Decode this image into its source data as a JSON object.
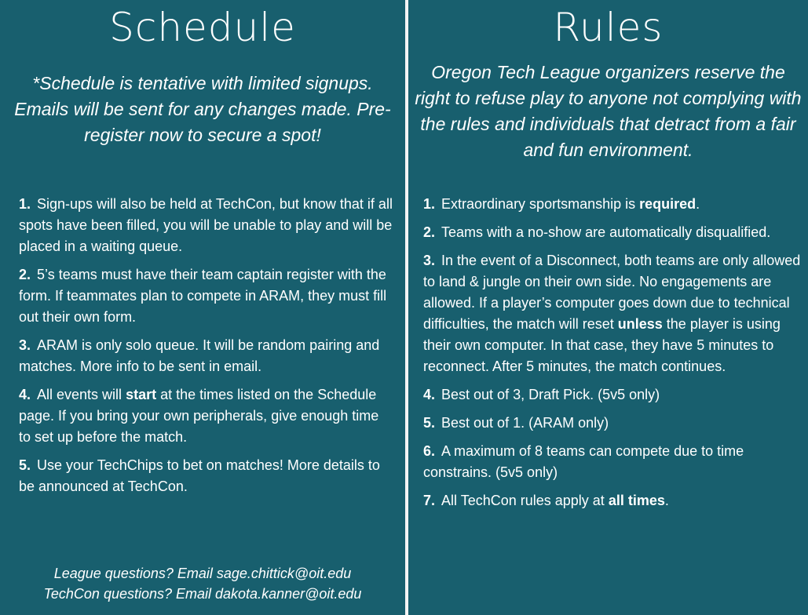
{
  "schedule": {
    "title": "Schedule",
    "intro": "*Schedule is tentative with limited signups. Emails will be sent for any changes made. Pre-register now to secure a spot!",
    "items": [
      {
        "num": "1.",
        "text": "Sign-ups will also be held at TechCon, but know that if all spots have been filled, you will be unable to play and will be placed in a waiting queue."
      },
      {
        "num": "2.",
        "text": "5’s teams must have their team captain register with the form. If teammates plan to compete in ARAM, they must fill out their own form."
      },
      {
        "num": "3.",
        "text": "ARAM is only solo queue. It will be random pairing and matches. More info to be sent in email."
      },
      {
        "num": "4.",
        "pre": "All events will ",
        "bold": "start",
        "post": " at the times listed on the Schedule page. If you bring your own peripherals, give enough time to set up before the match."
      },
      {
        "num": "5.",
        "text": "Use your TechChips to bet on matches! More details to be announced at TechCon."
      }
    ],
    "footer": [
      "League questions? Email sage.chittick@oit.edu",
      "TechCon questions? Email dakota.kanner@oit.edu"
    ]
  },
  "rules": {
    "title": "Rules",
    "intro": "Oregon Tech League organizers reserve the right to refuse play to anyone not complying with the rules and individuals that detract from a fair and fun environment.",
    "items": [
      {
        "num": "1.",
        "pre": "Extraordinary sportsmanship is ",
        "bold": "required",
        "post": "."
      },
      {
        "num": "2.",
        "text": "Teams with a no-show are automatically disqualified."
      },
      {
        "num": "3.",
        "pre": "In the event of a Disconnect, both teams are only allowed to land & jungle on their own side. No engagements are allowed. If a player’s computer goes down due to technical difficulties, the match will reset ",
        "bold": "unless",
        "post": " the player is using their own computer. In that case, they have 5 minutes to reconnect. After 5 minutes, the match continues."
      },
      {
        "num": "4.",
        "text": "Best out of 3, Draft Pick. (5v5 only)"
      },
      {
        "num": "5.",
        "text": "Best out of 1. (ARAM only)"
      },
      {
        "num": "6.",
        "text": "A maximum of 8 teams can compete due to time constrains. (5v5 only)"
      },
      {
        "num": "7.",
        "pre": "All TechCon rules apply at ",
        "bold": "all times",
        "post": "."
      }
    ]
  },
  "colors": {
    "background": "#185f6e",
    "text": "#ffffff",
    "divider": "#f4f4f4"
  }
}
